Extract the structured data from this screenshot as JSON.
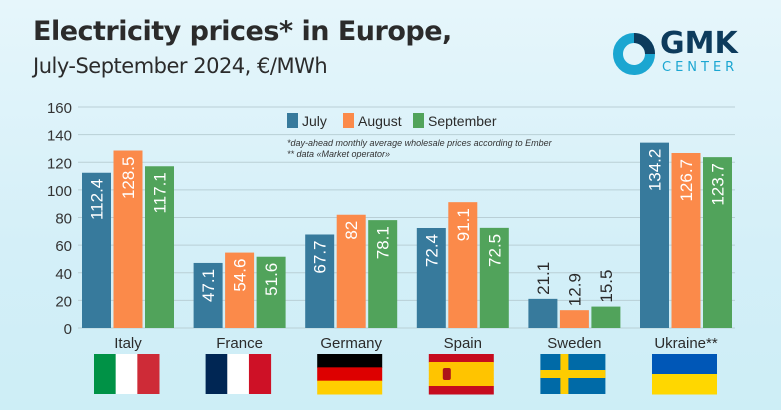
{
  "header": {
    "title": "Electricity prices* in Europe,",
    "subtitle": "July-September 2024, €/MWh"
  },
  "logo": {
    "text": "GMK",
    "subtext": "CENTER"
  },
  "colors": {
    "July": "#377a9c",
    "August": "#fb8a4a",
    "September": "#51a35b"
  },
  "chart_data": {
    "type": "bar",
    "title": "Electricity prices* in Europe, July-September 2024, €/MWh",
    "categories": [
      "Italy",
      "France",
      "Germany",
      "Spain",
      "Sweden",
      "Ukraine**"
    ],
    "series": [
      {
        "name": "July",
        "values": [
          112.4,
          47.1,
          67.7,
          72.4,
          21.1,
          134.2
        ],
        "labels": [
          "112.4",
          "47.1",
          "67.7",
          "72.4",
          "21.1",
          "134.2"
        ]
      },
      {
        "name": "August",
        "values": [
          128.5,
          54.6,
          82,
          91.1,
          12.9,
          126.7
        ],
        "labels": [
          "128.5",
          "54.6",
          "82",
          "91.1",
          "12.9",
          "126.7"
        ]
      },
      {
        "name": "September",
        "values": [
          117.1,
          51.6,
          78.1,
          72.5,
          15.5,
          123.7
        ],
        "labels": [
          "117.1",
          "51.6",
          "78.1",
          "72.5",
          "15.5",
          "123.7"
        ]
      }
    ],
    "yticks": [
      "0",
      "20",
      "40",
      "60",
      "80",
      "100",
      "120",
      "140",
      "160"
    ],
    "ylim": [
      0,
      160
    ],
    "grid": true,
    "legend": "top-center",
    "notes": [
      "*day-ahead monthly average wholesale prices according to Ember",
      "** data «Market operator»"
    ]
  }
}
